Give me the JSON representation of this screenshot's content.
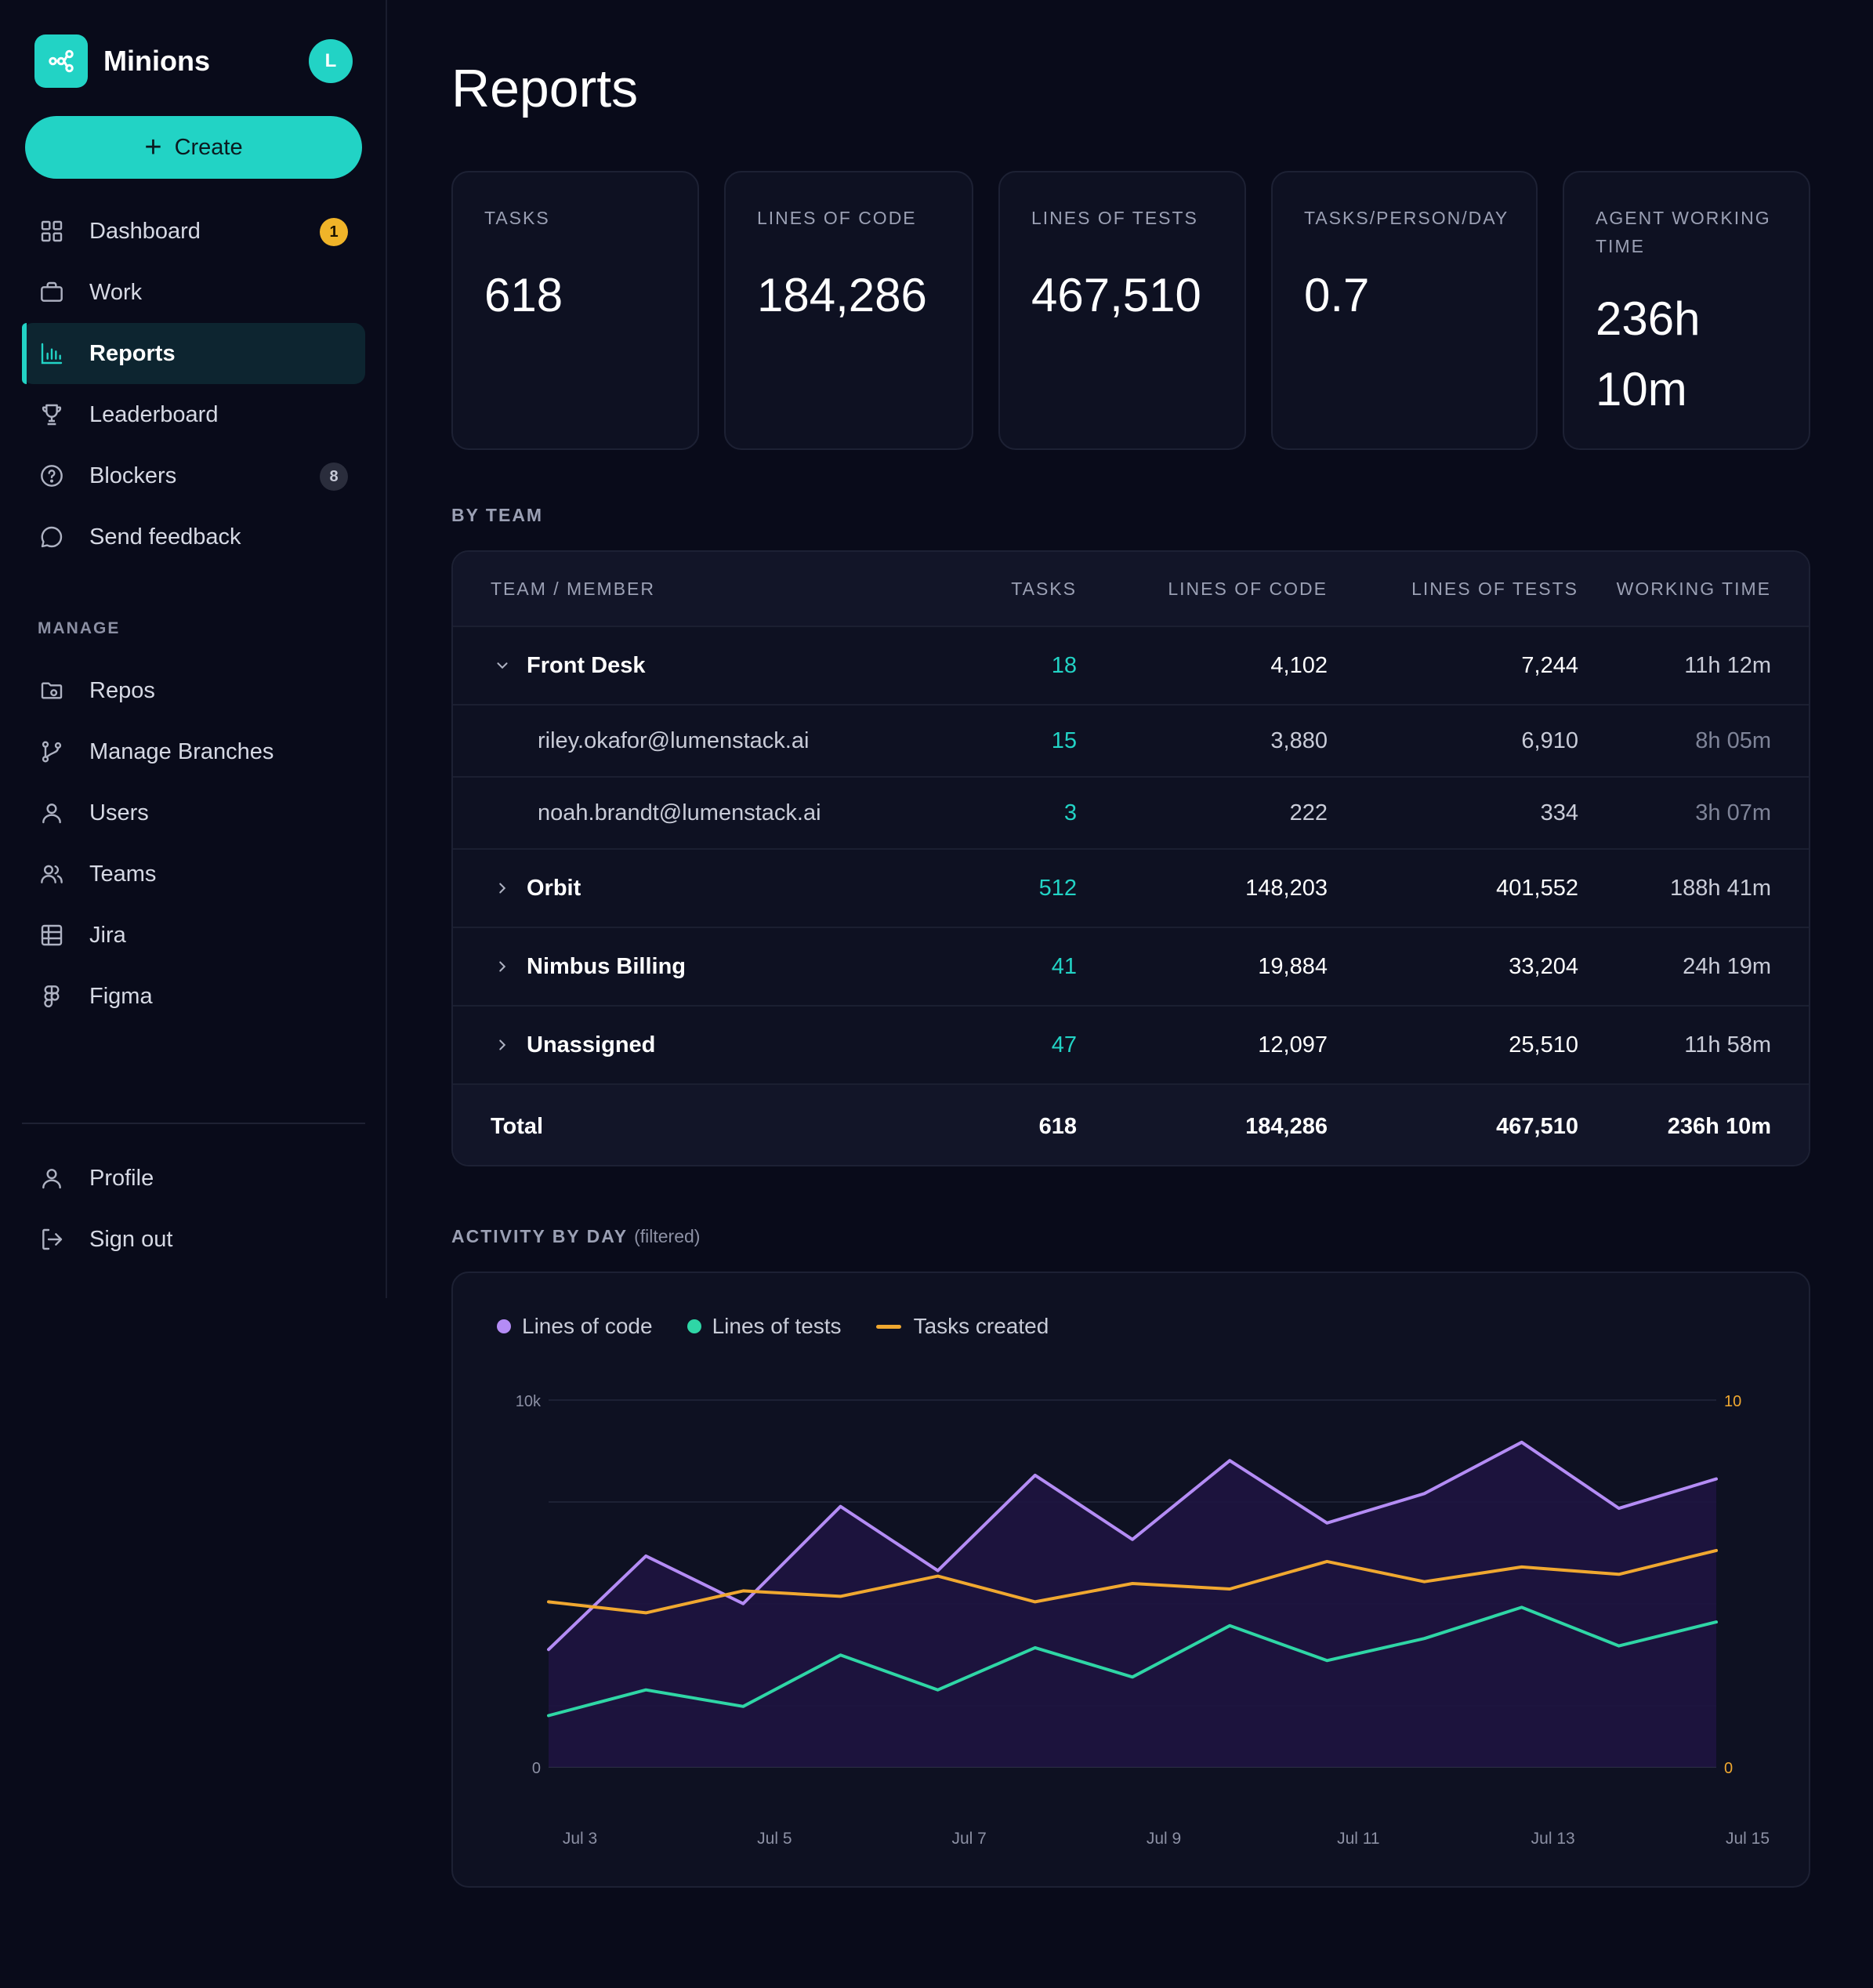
{
  "app": {
    "name": "Minions",
    "avatar_initial": "L"
  },
  "sidebar": {
    "create_label": "Create",
    "items": [
      {
        "label": "Dashboard",
        "icon": "grid-icon",
        "badge": "1"
      },
      {
        "label": "Work",
        "icon": "briefcase-icon"
      },
      {
        "label": "Reports",
        "icon": "bar-chart-icon",
        "active": true
      },
      {
        "label": "Leaderboard",
        "icon": "trophy-icon"
      },
      {
        "label": "Blockers",
        "icon": "help-circle-icon",
        "badge": "8"
      },
      {
        "label": "Send feedback",
        "icon": "message-icon"
      }
    ],
    "manage_label": "MANAGE",
    "manage_items": [
      {
        "label": "Repos",
        "icon": "folder-icon"
      },
      {
        "label": "Manage Branches",
        "icon": "git-branch-icon"
      },
      {
        "label": "Users",
        "icon": "user-icon"
      },
      {
        "label": "Teams",
        "icon": "users-icon"
      },
      {
        "label": "Jira",
        "icon": "table-icon"
      },
      {
        "label": "Figma",
        "icon": "figma-icon"
      }
    ],
    "bottom_items": [
      {
        "label": "Profile",
        "icon": "user-icon"
      },
      {
        "label": "Sign out",
        "icon": "log-out-icon"
      }
    ]
  },
  "page": {
    "title": "Reports"
  },
  "stats": [
    {
      "label": "TASKS",
      "value": "618"
    },
    {
      "label": "LINES OF CODE",
      "value": "184,286"
    },
    {
      "label": "LINES OF TESTS",
      "value": "467,510"
    },
    {
      "label": "TASKS/PERSON/DAY",
      "value": "0.7"
    },
    {
      "label": "AGENT WORKING TIME",
      "value": "236h 10m"
    }
  ],
  "by_team": {
    "title": "BY TEAM",
    "columns": [
      "TEAM / MEMBER",
      "TASKS",
      "LINES OF CODE",
      "LINES OF TESTS",
      "WORKING TIME"
    ],
    "rows": [
      {
        "kind": "team",
        "expanded": true,
        "name": "Front Desk",
        "tasks": "18",
        "loc": "4,102",
        "lot": "7,244",
        "time": "11h 12m"
      },
      {
        "kind": "member",
        "name": "riley.okafor@lumenstack.ai",
        "tasks": "15",
        "loc": "3,880",
        "lot": "6,910",
        "time": "8h 05m"
      },
      {
        "kind": "member",
        "name": "noah.brandt@lumenstack.ai",
        "tasks": "3",
        "loc": "222",
        "lot": "334",
        "time": "3h 07m"
      },
      {
        "kind": "team",
        "expanded": false,
        "name": "Orbit",
        "tasks": "512",
        "loc": "148,203",
        "lot": "401,552",
        "time": "188h 41m"
      },
      {
        "kind": "team",
        "expanded": false,
        "name": "Nimbus Billing",
        "tasks": "41",
        "loc": "19,884",
        "lot": "33,204",
        "time": "24h 19m"
      },
      {
        "kind": "team",
        "expanded": false,
        "name": "Unassigned",
        "tasks": "47",
        "loc": "12,097",
        "lot": "25,510",
        "time": "11h 58m"
      }
    ],
    "total": {
      "name": "Total",
      "tasks": "618",
      "loc": "184,286",
      "lot": "467,510",
      "time": "236h 10m"
    }
  },
  "activity": {
    "title": "ACTIVITY BY DAY",
    "subtitle": "(filtered)"
  },
  "chart_data": {
    "type": "line",
    "x": [
      "Jul 3",
      "Jul 4",
      "Jul 5",
      "Jul 6",
      "Jul 7",
      "Jul 8",
      "Jul 9",
      "Jul 10",
      "Jul 11",
      "Jul 12",
      "Jul 13",
      "Jul 14",
      "Jul 15"
    ],
    "x_tick_labels": [
      "Jul 3",
      "Jul 5",
      "Jul 7",
      "Jul 9",
      "Jul 11",
      "Jul 13",
      "Jul 15"
    ],
    "y_left": {
      "ticks": [
        "0",
        "10k"
      ],
      "range": [
        0,
        10000
      ]
    },
    "y_right": {
      "ticks": [
        "0",
        "10"
      ],
      "range": [
        0,
        10
      ]
    },
    "series": [
      {
        "name": "Lines of code",
        "axis": "left",
        "style": "area",
        "color": "#b48cf5",
        "values": [
          3200,
          5750,
          4450,
          7100,
          5350,
          7950,
          6200,
          8350,
          6650,
          7450,
          8850,
          7050,
          7850
        ]
      },
      {
        "name": "Lines of tests",
        "axis": "left",
        "style": "line",
        "color": "#2fd6a6",
        "values": [
          1400,
          2100,
          1650,
          3050,
          2100,
          3250,
          2450,
          3850,
          2900,
          3500,
          4350,
          3300,
          3950
        ]
      },
      {
        "name": "Tasks created",
        "axis": "right",
        "style": "line",
        "color": "#f0a830",
        "values": [
          4.5,
          4.2,
          4.8,
          4.65,
          5.2,
          4.5,
          5.0,
          4.85,
          5.6,
          5.05,
          5.45,
          5.25,
          5.9
        ]
      }
    ],
    "grid": true,
    "legend": "top-left"
  }
}
